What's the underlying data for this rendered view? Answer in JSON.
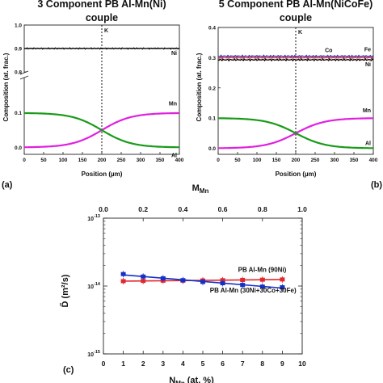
{
  "chart_data": [
    {
      "type": "line",
      "panel_label": "(a)",
      "title": "3 Component PB Al-Mn(Ni) couple",
      "xlabel": "Position (µm)",
      "ylabel": "Composition (at. frac.)",
      "xlim": [
        0,
        400
      ],
      "ylim_lower": [
        -0.02,
        0.2
      ],
      "ylim_upper": [
        0.8,
        1.0
      ],
      "axis_break": true,
      "x_ticks": [
        0,
        50,
        100,
        150,
        200,
        250,
        300,
        350,
        400
      ],
      "y_ticks_lower": [
        0.0,
        0.1
      ],
      "y_ticks_upper": [
        0.8,
        0.9,
        1.0
      ],
      "marker_line": {
        "x": 200,
        "label": "K"
      },
      "series": [
        {
          "name": "Ni",
          "color": "#000000",
          "kind": "flat",
          "value": 0.9
        },
        {
          "name": "Mn",
          "color": "#e020e0",
          "kind": "sigmoid",
          "from": 0.0,
          "to": 0.1,
          "center": 200,
          "width": 38
        },
        {
          "name": "Al",
          "color": "#1a9a1a",
          "kind": "sigmoid",
          "from": 0.1,
          "to": 0.0,
          "center": 200,
          "width": 38
        }
      ]
    },
    {
      "type": "line",
      "panel_label": "(b)",
      "title": "5 Component PB Al-Mn(NiCoFe) couple",
      "xlabel": "Position (µm)",
      "ylabel": "Composition (at. frac.)",
      "xlim": [
        0,
        400
      ],
      "ylim": [
        -0.02,
        0.4
      ],
      "x_ticks": [
        0,
        50,
        100,
        150,
        200,
        250,
        300,
        350,
        400
      ],
      "y_ticks": [
        0.0,
        0.1,
        0.2,
        0.3,
        0.4
      ],
      "marker_line": {
        "x": 200,
        "label": "K"
      },
      "series": [
        {
          "name": "Fe",
          "color": "#2a3ad0",
          "kind": "flat",
          "value": 0.305
        },
        {
          "name": "Co",
          "color": "#e03030",
          "kind": "flat",
          "value": 0.3
        },
        {
          "name": "Ni",
          "color": "#000000",
          "kind": "flat",
          "value": 0.293
        },
        {
          "name": "Mn",
          "color": "#e020e0",
          "kind": "sigmoid",
          "from": 0.0,
          "to": 0.1,
          "center": 200,
          "width": 38
        },
        {
          "name": "Al",
          "color": "#1a9a1a",
          "kind": "sigmoid",
          "from": 0.1,
          "to": 0.0,
          "center": 200,
          "width": 38
        }
      ]
    },
    {
      "type": "scatter",
      "panel_label": "(c)",
      "xlabel": "N",
      "xlabel_sub": "Mn",
      "xlabel_unit": "(at. %)",
      "top_xlabel": "M",
      "top_xlabel_sub": "Mn",
      "ylabel": "D̃ (m²/s)",
      "y_scale": "log",
      "xlim": [
        0,
        10
      ],
      "top_xlim": [
        0.0,
        1.0
      ],
      "ylim": [
        1e-15,
        1e-13
      ],
      "x_ticks": [
        0,
        1,
        2,
        3,
        4,
        5,
        6,
        7,
        8,
        9,
        10
      ],
      "top_x_ticks": [
        "0.0",
        "0.2",
        "0.4",
        "0.6",
        "0.8",
        "1.0"
      ],
      "y_ticks": [
        {
          "value": 1e-15,
          "mantissa": "10",
          "exponent": "-15"
        },
        {
          "value": 1e-14,
          "mantissa": "10",
          "exponent": "-14"
        },
        {
          "value": 1e-13,
          "mantissa": "10",
          "exponent": "-13"
        }
      ],
      "series": [
        {
          "name": "PB Al-Mn (90Ni)",
          "color": "#e0282d",
          "x": [
            1,
            2,
            3,
            4,
            5,
            6,
            7,
            8,
            9
          ],
          "y": [
            1.18e-14,
            1.19e-14,
            1.2e-14,
            1.2e-14,
            1.21e-14,
            1.22e-14,
            1.23e-14,
            1.24e-14,
            1.25e-14
          ]
        },
        {
          "name": "PB Al-Mn (30Ni+30Co+30Fe)",
          "color": "#1530c8",
          "x": [
            1,
            2,
            3,
            4,
            5,
            6,
            7,
            8,
            9
          ],
          "y": [
            1.5e-14,
            1.38e-14,
            1.3e-14,
            1.22e-14,
            1.15e-14,
            1.1e-14,
            1.04e-14,
            9.8e-15,
            9.6e-15
          ]
        }
      ]
    }
  ]
}
